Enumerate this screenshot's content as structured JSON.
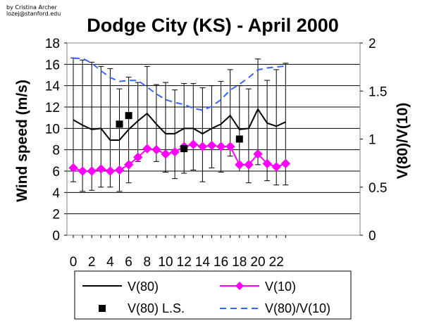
{
  "credit": [
    "by Cristina Archer",
    "lozej@stanford.edu"
  ],
  "chart_data": {
    "type": "line",
    "title": "Dodge City (KS) - April 2000",
    "xlabel": "",
    "ylabel": "Wind speed (m/s)",
    "y2label": "V(80)/V(10)",
    "x": [
      0,
      1,
      2,
      3,
      4,
      5,
      6,
      7,
      8,
      9,
      10,
      11,
      12,
      13,
      14,
      15,
      16,
      17,
      18,
      19,
      20,
      21,
      22,
      23
    ],
    "xticks": [
      "0",
      "2",
      "4",
      "6",
      "8",
      "10",
      "12",
      "14",
      "16",
      "18",
      "20",
      "22"
    ],
    "ylim": [
      0,
      18
    ],
    "yticks": [
      "0",
      "2",
      "4",
      "6",
      "8",
      "10",
      "12",
      "14",
      "16",
      "18"
    ],
    "y2lim": [
      0,
      2
    ],
    "y2ticks": [
      "0",
      "0.5",
      "1",
      "1.5",
      "2"
    ],
    "grid": "horizontal",
    "legend_position": "bottom",
    "series": [
      {
        "name": "V(80)",
        "axis": "left",
        "color": "#000000",
        "style": "solid-line",
        "values": [
          10.8,
          10.3,
          9.9,
          10.0,
          8.9,
          8.9,
          9.9,
          10.7,
          11.4,
          10.4,
          9.5,
          9.5,
          10.0,
          10.0,
          9.5,
          10.0,
          10.4,
          11.2,
          9.9,
          10.0,
          11.8,
          10.5,
          10.2,
          10.6
        ],
        "err_high": [
          16.6,
          16.4,
          16.2,
          15.8,
          15.6,
          13.7,
          14.8,
          14.3,
          15.8,
          14.1,
          14.3,
          13.6,
          14.2,
          14.2,
          13.8,
          14.0,
          14.4,
          15.5,
          14.0,
          13.7,
          16.5,
          14.5,
          15.5,
          16.1
        ],
        "err_low": [
          5.0,
          4.1,
          4.2,
          4.5,
          4.5,
          4.1,
          4.9,
          6.9,
          8.1,
          6.9,
          5.9,
          5.3,
          5.8,
          6.1,
          5.0,
          6.3,
          5.9,
          7.4,
          6.0,
          4.9,
          6.6,
          5.1,
          4.7,
          4.7
        ]
      },
      {
        "name": "V(10)",
        "axis": "left",
        "color": "#ff00ff",
        "style": "line-diamond",
        "values": [
          6.3,
          6.0,
          6.0,
          6.2,
          6.0,
          6.1,
          6.6,
          7.3,
          8.1,
          8.0,
          7.6,
          7.8,
          8.3,
          8.5,
          8.3,
          8.4,
          8.3,
          8.3,
          6.6,
          6.6,
          7.6,
          6.7,
          6.4,
          6.7
        ]
      },
      {
        "name": "V(80) L.S.",
        "axis": "left",
        "color": "#000000",
        "style": "square-marker",
        "x": [
          5,
          6,
          12,
          18
        ],
        "values": [
          10.4,
          11.2,
          8.1,
          9.0
        ]
      },
      {
        "name": "V(80)/V(10)",
        "axis": "right",
        "color": "#3366ff",
        "style": "dashed-line",
        "values": [
          1.84,
          1.84,
          1.79,
          1.71,
          1.64,
          1.6,
          1.61,
          1.61,
          1.54,
          1.47,
          1.41,
          1.38,
          1.36,
          1.32,
          1.3,
          1.34,
          1.41,
          1.51,
          1.57,
          1.64,
          1.72,
          1.74,
          1.75,
          1.76
        ]
      }
    ]
  }
}
